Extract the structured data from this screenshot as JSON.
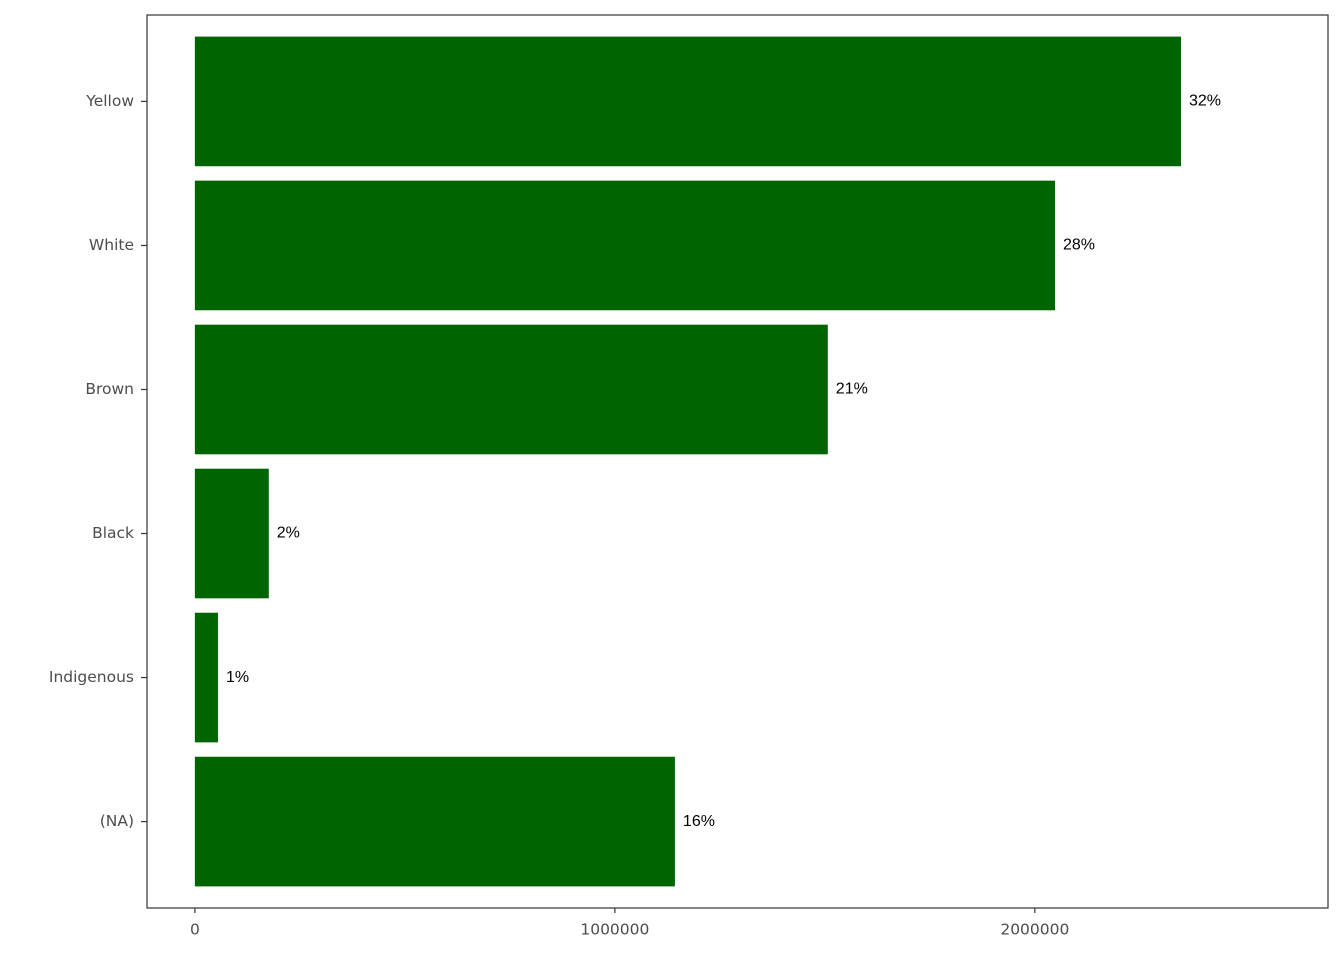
{
  "chart_data": {
    "type": "barh",
    "categories": [
      "Yellow",
      "White",
      "Brown",
      "Black",
      "Indigenous",
      "(NA)"
    ],
    "values": [
      2348000,
      2048000,
      1507000,
      176000,
      55000,
      1143000
    ],
    "bar_labels": [
      "32%",
      "28%",
      "21%",
      "2%",
      "1%",
      "16%"
    ],
    "color": "#006400",
    "xlim": [
      -114000,
      2698000
    ],
    "xticks": [
      0,
      1000000,
      2000000
    ],
    "grid": false
  }
}
